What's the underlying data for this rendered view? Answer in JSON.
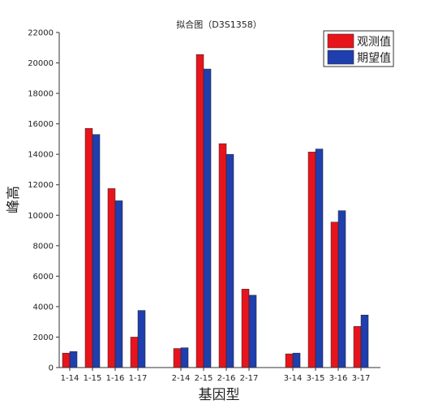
{
  "chart_data": {
    "type": "bar",
    "title": "拟合图（D3S1358）",
    "xlabel": "基因型",
    "ylabel": "峰高",
    "ylim": [
      0,
      22000
    ],
    "yticks": [
      0,
      2000,
      4000,
      6000,
      8000,
      10000,
      12000,
      14000,
      16000,
      18000,
      20000,
      22000
    ],
    "grid": false,
    "legend_position": "top-right",
    "categories": [
      "1-14",
      "1-15",
      "1-16",
      "1-17",
      "2-14",
      "2-15",
      "2-16",
      "2-17",
      "3-14",
      "3-15",
      "3-16",
      "3-17"
    ],
    "series": [
      {
        "name": "观测值",
        "color": "#e8141c",
        "values": [
          950,
          15700,
          11750,
          2000,
          1250,
          20550,
          14700,
          5150,
          900,
          14150,
          9550,
          2700
        ]
      },
      {
        "name": "期望值",
        "color": "#1f3fae",
        "values": [
          1050,
          15300,
          10950,
          3750,
          1300,
          19600,
          14000,
          4750,
          950,
          14350,
          10300,
          3450
        ]
      }
    ]
  }
}
